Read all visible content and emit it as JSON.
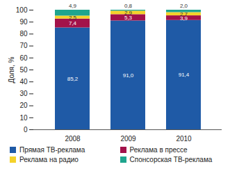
{
  "chart_data": {
    "type": "bar",
    "stacked": true,
    "data_labels": true,
    "legend": "bottom",
    "y_label": "Доля, %",
    "categories": [
      "2008",
      "2009",
      "2010"
    ],
    "ylim": [
      0,
      100
    ],
    "yticks": [
      0,
      10,
      20,
      30,
      40,
      50,
      60,
      70,
      80,
      90,
      100
    ],
    "series": [
      {
        "name": "Прямая ТВ-реклама",
        "color": "#1f5aa6",
        "values": [
          85.2,
          91.0,
          91.4
        ],
        "value_labels": [
          "85,2",
          "91,0",
          "91,4"
        ]
      },
      {
        "name": "Реклама в прессе",
        "color": "#a3124a",
        "values": [
          7.4,
          5.3,
          3.9
        ],
        "value_labels": [
          "7,4",
          "5,3",
          "3,9"
        ]
      },
      {
        "name": "Реклама на радио",
        "color": "#f4d22a",
        "values": [
          2.5,
          2.9,
          2.7
        ],
        "value_labels": [
          "2,5",
          "2,9",
          "2,7"
        ]
      },
      {
        "name": "Спонсорская ТВ-реклама",
        "color": "#1fa58e",
        "values": [
          4.9,
          0.8,
          2.0
        ],
        "value_labels": [
          "4,9",
          "0,8",
          "2,0"
        ]
      }
    ]
  }
}
